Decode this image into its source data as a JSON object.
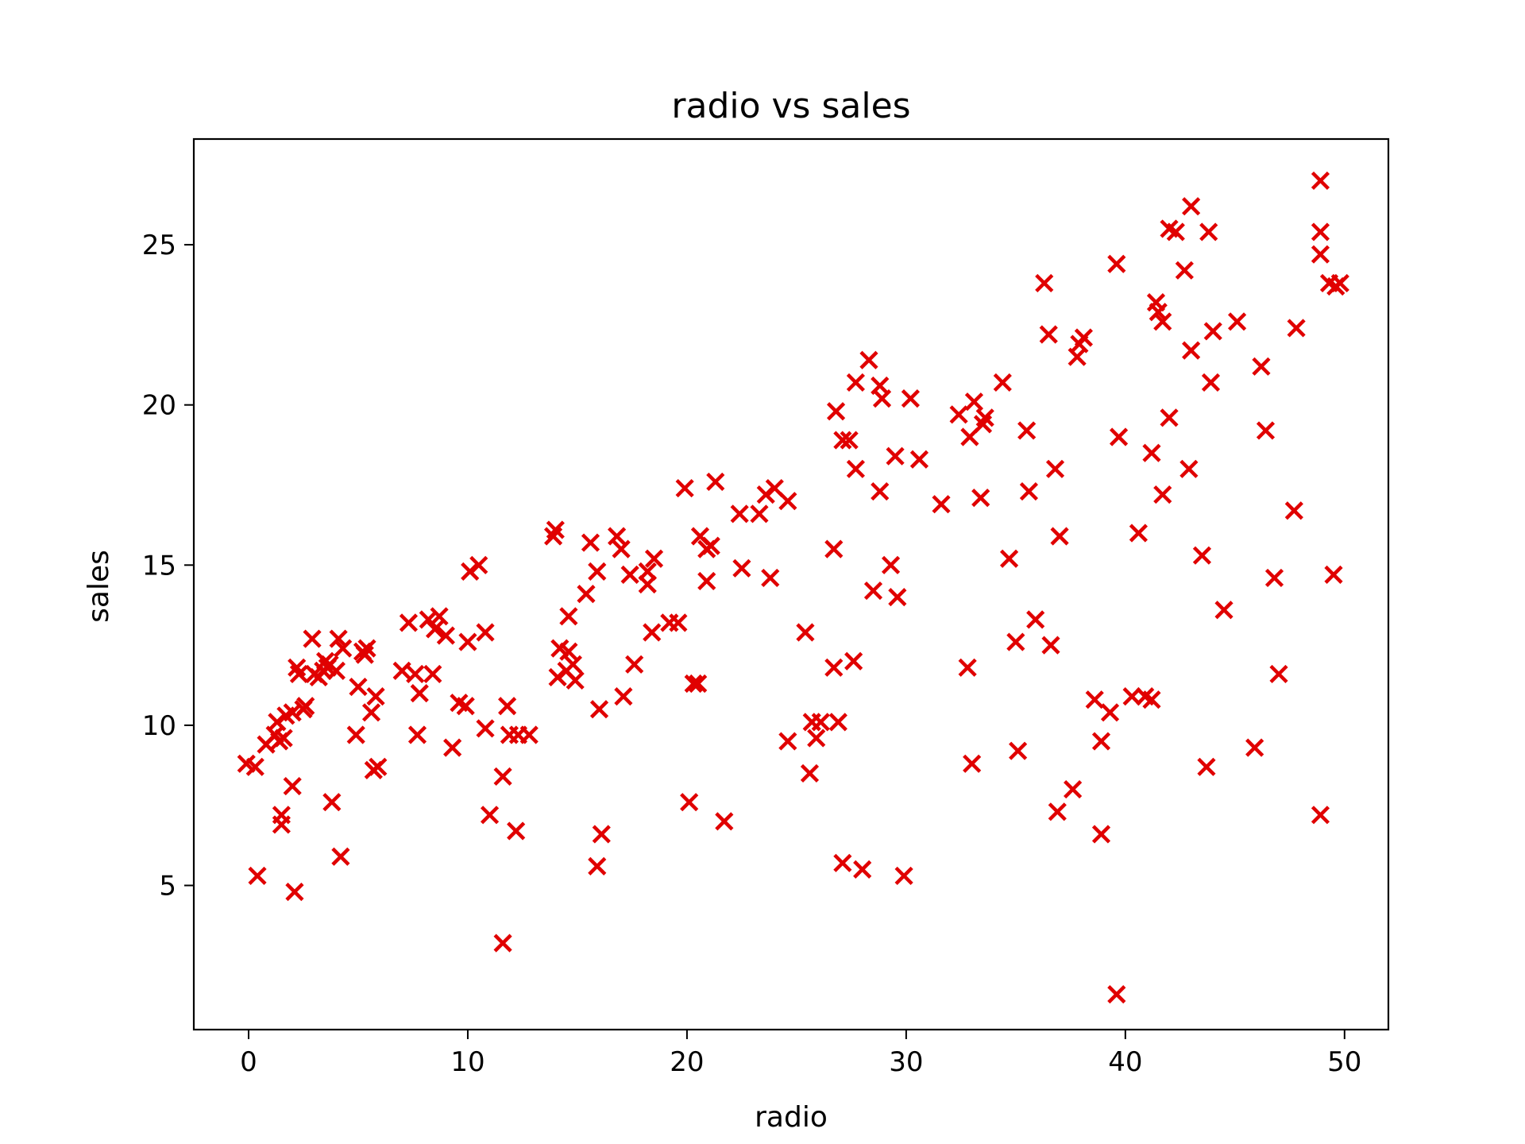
{
  "chart_data": {
    "type": "scatter",
    "title": "radio vs sales",
    "xlabel": "radio",
    "ylabel": "sales",
    "xlim": [
      -2.5,
      52
    ],
    "ylim": [
      0.5,
      28.3
    ],
    "x_ticks": [
      0,
      10,
      20,
      30,
      40,
      50
    ],
    "y_ticks": [
      5,
      10,
      15,
      20,
      25
    ],
    "x_tick_labels": [
      "0",
      "10",
      "20",
      "30",
      "40",
      "50"
    ],
    "y_tick_labels": [
      "5",
      "10",
      "15",
      "20",
      "25"
    ],
    "grid": false,
    "legend": "none",
    "marker": "x",
    "marker_color": "#e00000",
    "points": [
      [
        -0.1,
        8.8
      ],
      [
        0.3,
        8.7
      ],
      [
        0.4,
        5.3
      ],
      [
        0.8,
        9.4
      ],
      [
        1.2,
        9.7
      ],
      [
        1.3,
        10.1
      ],
      [
        1.4,
        9.5
      ],
      [
        1.5,
        7.2
      ],
      [
        1.6,
        9.6
      ],
      [
        1.5,
        6.9
      ],
      [
        1.7,
        10.3
      ],
      [
        2.0,
        8.1
      ],
      [
        2.0,
        10.4
      ],
      [
        2.1,
        4.8
      ],
      [
        2.2,
        11.8
      ],
      [
        2.3,
        11.6
      ],
      [
        2.5,
        10.5
      ],
      [
        2.6,
        10.6
      ],
      [
        2.9,
        12.7
      ],
      [
        3.0,
        11.6
      ],
      [
        3.2,
        11.5
      ],
      [
        3.4,
        11.7
      ],
      [
        3.5,
        12.0
      ],
      [
        3.6,
        11.8
      ],
      [
        3.7,
        11.9
      ],
      [
        3.8,
        7.6
      ],
      [
        4.0,
        11.7
      ],
      [
        4.1,
        12.7
      ],
      [
        4.2,
        5.9
      ],
      [
        4.3,
        12.4
      ],
      [
        4.9,
        9.7
      ],
      [
        5.0,
        11.2
      ],
      [
        5.2,
        12.3
      ],
      [
        5.3,
        12.2
      ],
      [
        5.4,
        12.4
      ],
      [
        5.6,
        10.4
      ],
      [
        5.7,
        8.6
      ],
      [
        5.8,
        10.9
      ],
      [
        5.9,
        8.7
      ],
      [
        7.0,
        11.7
      ],
      [
        7.3,
        13.2
      ],
      [
        7.6,
        11.6
      ],
      [
        7.7,
        9.7
      ],
      [
        7.8,
        11.0
      ],
      [
        8.2,
        13.3
      ],
      [
        8.4,
        11.6
      ],
      [
        8.5,
        13.0
      ],
      [
        8.7,
        13.4
      ],
      [
        9.0,
        12.8
      ],
      [
        9.3,
        9.3
      ],
      [
        9.6,
        10.7
      ],
      [
        10.0,
        12.6
      ],
      [
        9.9,
        10.6
      ],
      [
        10.1,
        14.8
      ],
      [
        10.5,
        15.0
      ],
      [
        10.8,
        12.9
      ],
      [
        10.8,
        9.9
      ],
      [
        11.0,
        7.2
      ],
      [
        11.6,
        3.2
      ],
      [
        11.6,
        8.4
      ],
      [
        11.8,
        10.6
      ],
      [
        11.9,
        9.7
      ],
      [
        12.2,
        6.7
      ],
      [
        12.3,
        9.7
      ],
      [
        12.8,
        9.7
      ],
      [
        13.9,
        15.9
      ],
      [
        14.0,
        16.1
      ],
      [
        14.1,
        11.5
      ],
      [
        14.2,
        12.4
      ],
      [
        14.5,
        11.7
      ],
      [
        14.6,
        13.4
      ],
      [
        14.6,
        12.3
      ],
      [
        14.8,
        11.9
      ],
      [
        14.9,
        11.4
      ],
      [
        15.4,
        14.1
      ],
      [
        15.6,
        15.7
      ],
      [
        15.9,
        14.8
      ],
      [
        16.0,
        10.5
      ],
      [
        15.9,
        5.6
      ],
      [
        16.1,
        6.6
      ],
      [
        16.8,
        15.9
      ],
      [
        17.0,
        15.5
      ],
      [
        17.1,
        10.9
      ],
      [
        17.4,
        14.7
      ],
      [
        17.6,
        11.9
      ],
      [
        18.2,
        14.8
      ],
      [
        18.2,
        14.4
      ],
      [
        18.4,
        12.9
      ],
      [
        18.5,
        15.2
      ],
      [
        19.2,
        13.2
      ],
      [
        19.6,
        13.2
      ],
      [
        19.9,
        17.4
      ],
      [
        20.1,
        7.6
      ],
      [
        20.3,
        11.3
      ],
      [
        20.6,
        15.9
      ],
      [
        20.5,
        11.3
      ],
      [
        20.9,
        14.5
      ],
      [
        20.9,
        15.5
      ],
      [
        21.1,
        15.6
      ],
      [
        21.3,
        17.6
      ],
      [
        21.7,
        7.0
      ],
      [
        22.4,
        16.6
      ],
      [
        22.5,
        14.9
      ],
      [
        23.3,
        16.6
      ],
      [
        23.6,
        17.2
      ],
      [
        23.8,
        14.6
      ],
      [
        24.0,
        17.4
      ],
      [
        24.6,
        17.0
      ],
      [
        24.6,
        9.5
      ],
      [
        25.4,
        12.9
      ],
      [
        25.6,
        8.5
      ],
      [
        25.7,
        10.1
      ],
      [
        25.9,
        9.6
      ],
      [
        26.1,
        10.1
      ],
      [
        26.7,
        15.5
      ],
      [
        26.7,
        11.8
      ],
      [
        26.8,
        19.8
      ],
      [
        26.9,
        10.1
      ],
      [
        27.1,
        18.9
      ],
      [
        27.1,
        5.7
      ],
      [
        27.4,
        18.9
      ],
      [
        27.6,
        12.0
      ],
      [
        27.7,
        20.7
      ],
      [
        27.7,
        18.0
      ],
      [
        28.0,
        5.5
      ],
      [
        28.3,
        21.4
      ],
      [
        28.5,
        14.2
      ],
      [
        28.8,
        17.3
      ],
      [
        28.8,
        20.6
      ],
      [
        28.9,
        20.2
      ],
      [
        29.3,
        15.0
      ],
      [
        29.5,
        18.4
      ],
      [
        29.6,
        14.0
      ],
      [
        29.9,
        5.3
      ],
      [
        30.2,
        20.2
      ],
      [
        30.6,
        18.3
      ],
      [
        31.6,
        16.9
      ],
      [
        32.4,
        19.7
      ],
      [
        32.8,
        11.8
      ],
      [
        32.9,
        19.0
      ],
      [
        33.0,
        8.8
      ],
      [
        33.1,
        20.1
      ],
      [
        33.4,
        17.1
      ],
      [
        33.5,
        19.4
      ],
      [
        33.6,
        19.6
      ],
      [
        34.4,
        20.7
      ],
      [
        34.7,
        15.2
      ],
      [
        35.0,
        12.6
      ],
      [
        35.1,
        9.2
      ],
      [
        35.5,
        19.2
      ],
      [
        35.6,
        17.3
      ],
      [
        35.9,
        13.3
      ],
      [
        36.3,
        23.8
      ],
      [
        36.5,
        22.2
      ],
      [
        36.6,
        12.5
      ],
      [
        36.8,
        18.0
      ],
      [
        36.9,
        7.3
      ],
      [
        37.0,
        15.9
      ],
      [
        37.6,
        8.0
      ],
      [
        37.8,
        21.5
      ],
      [
        37.9,
        21.9
      ],
      [
        38.1,
        22.1
      ],
      [
        38.6,
        10.8
      ],
      [
        38.9,
        6.6
      ],
      [
        38.9,
        9.5
      ],
      [
        39.3,
        10.4
      ],
      [
        39.6,
        1.6
      ],
      [
        39.6,
        24.4
      ],
      [
        39.7,
        19.0
      ],
      [
        40.3,
        10.9
      ],
      [
        40.6,
        16.0
      ],
      [
        40.9,
        10.9
      ],
      [
        41.2,
        18.5
      ],
      [
        41.2,
        10.8
      ],
      [
        41.4,
        23.2
      ],
      [
        41.5,
        22.9
      ],
      [
        41.7,
        22.6
      ],
      [
        41.7,
        17.2
      ],
      [
        42.0,
        25.5
      ],
      [
        42.0,
        19.6
      ],
      [
        42.3,
        25.4
      ],
      [
        42.7,
        24.2
      ],
      [
        42.9,
        18.0
      ],
      [
        43.0,
        21.7
      ],
      [
        43.0,
        26.2
      ],
      [
        43.5,
        15.3
      ],
      [
        43.7,
        8.7
      ],
      [
        43.8,
        25.4
      ],
      [
        43.9,
        20.7
      ],
      [
        44.0,
        22.3
      ],
      [
        44.5,
        13.6
      ],
      [
        45.1,
        22.6
      ],
      [
        45.9,
        9.3
      ],
      [
        46.2,
        21.2
      ],
      [
        46.4,
        19.2
      ],
      [
        46.8,
        14.6
      ],
      [
        47.0,
        11.6
      ],
      [
        47.7,
        16.7
      ],
      [
        47.8,
        22.4
      ],
      [
        48.9,
        7.2
      ],
      [
        48.9,
        27.0
      ],
      [
        48.9,
        25.4
      ],
      [
        48.9,
        24.7
      ],
      [
        49.3,
        23.8
      ],
      [
        49.5,
        14.7
      ],
      [
        49.6,
        23.7
      ],
      [
        49.8,
        23.8
      ]
    ]
  }
}
